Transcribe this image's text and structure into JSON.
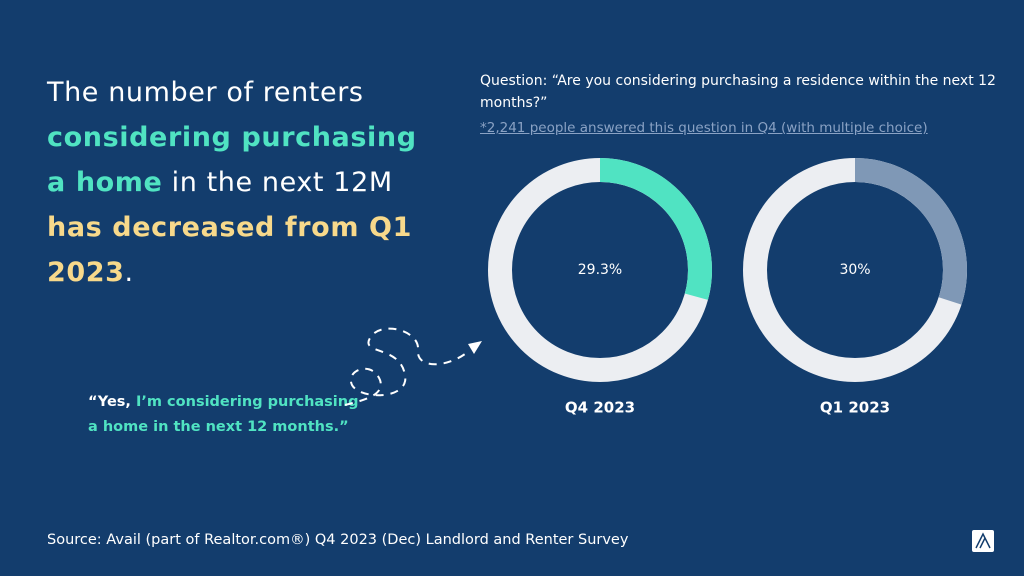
{
  "headline": {
    "parts": [
      "The number of renters ",
      "considering purchasing a home",
      " in the next 12M ",
      "has decreased from Q1 2023",
      "."
    ]
  },
  "question": "Question: “Are you considering purchasing a residence within the next 12 months?”",
  "note": "*2,241 people answered this question in Q4 (with multiple choice)",
  "quote": {
    "parts": [
      "“Yes, ",
      "I’m considering purchasing a home in the next 12 months.”"
    ]
  },
  "source": "Source: Avail (part of Realtor.com®) Q4 2023 (Dec) Landlord and Renter Survey",
  "chart_data": [
    {
      "type": "donut",
      "categories": [
        "Q4 2023"
      ],
      "values": [
        29.3
      ],
      "value_labels": [
        "29.3%"
      ],
      "color": "#50e3c2"
    },
    {
      "type": "donut",
      "categories": [
        "Q1 2023"
      ],
      "values": [
        30
      ],
      "value_labels": [
        "30%"
      ],
      "color": "#7f98b6"
    }
  ]
}
